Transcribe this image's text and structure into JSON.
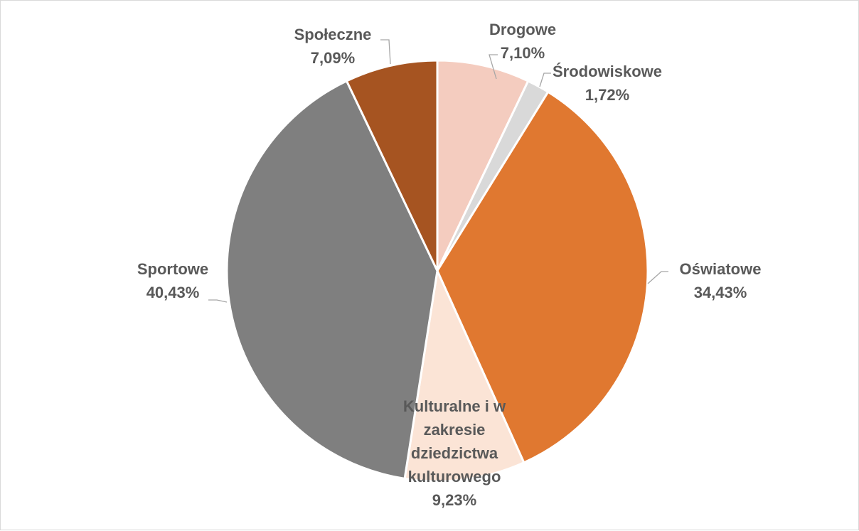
{
  "chart_data": {
    "type": "pie",
    "title": "",
    "start_angle_deg": 0,
    "direction": "clockwise",
    "slices": [
      {
        "label": "Drogowe",
        "value": 7.1,
        "value_label": "7,10%",
        "color": "#F4CCBF"
      },
      {
        "label": "Środowiskowe",
        "value": 1.72,
        "value_label": "1,72%",
        "color": "#D9D9D9"
      },
      {
        "label": "Oświatowe",
        "value": 34.43,
        "value_label": "34,43%",
        "color": "#E07830"
      },
      {
        "label": "Kulturalne i w zakresie dziedzictwa kulturowego",
        "label_lines": [
          "Kulturalne i w",
          "zakresie",
          "dziedzictwa",
          "kulturowego"
        ],
        "value": 9.23,
        "value_label": "9,23%",
        "color": "#FBE4D6"
      },
      {
        "label": "Sportowe",
        "value": 40.43,
        "value_label": "40,43%",
        "color": "#7F7F7F"
      },
      {
        "label": "Społeczne",
        "value": 7.09,
        "value_label": "7,09%",
        "color": "#A65421"
      }
    ],
    "legend": "none",
    "data_labels": "category name and percentage"
  }
}
